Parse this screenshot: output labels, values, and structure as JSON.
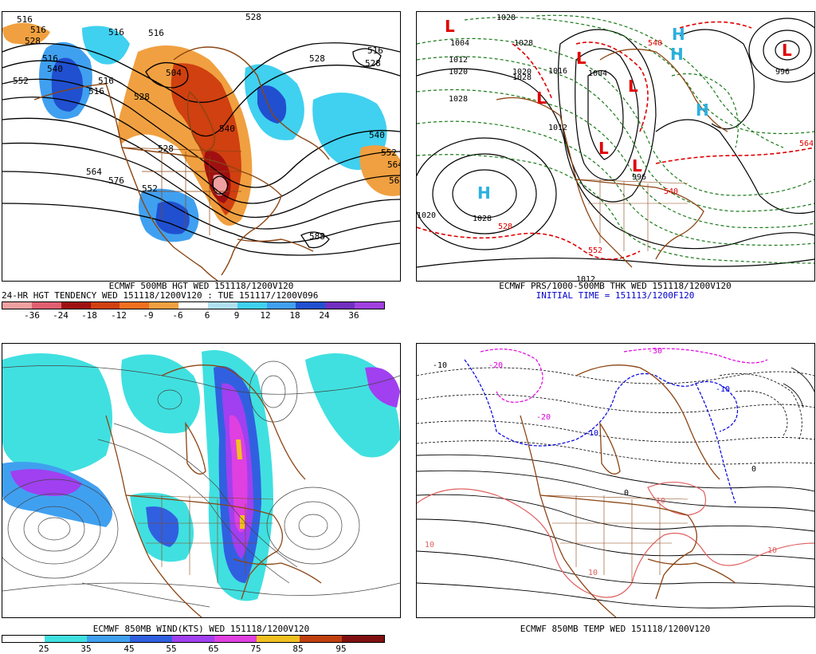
{
  "panels": {
    "p1": {
      "caption1": "ECMWF 500MB HGT WED 151118/1200V120",
      "caption2": "24-HR HGT TENDENCY WED 151118/1200V120 : TUE 151117/1200V096",
      "legend_labels": [
        "-36",
        "-24",
        "-18",
        "-12",
        "-9",
        "-6",
        "6",
        "9",
        "12",
        "18",
        "24",
        "36"
      ],
      "legend_colors": [
        "#f0a0a0",
        "#e06070",
        "#a01010",
        "#d04010",
        "#f07020",
        "#f0a040",
        "#ffffff",
        "#b0e0f0",
        "#40d0f0",
        "#40a0f0",
        "#2050d0",
        "#7030c0",
        "#a040e0"
      ],
      "contour_labels": [
        "516",
        "516",
        "528",
        "528",
        "540",
        "516",
        "516",
        "504",
        "516",
        "528",
        "540",
        "552",
        "564",
        "576",
        "528",
        "516",
        "528",
        "528",
        "552",
        "564",
        "516",
        "588",
        "552",
        "516",
        "540",
        "564"
      ]
    },
    "p2": {
      "caption1": "ECMWF PRS/1000-500MB THK WED 151118/1200V120",
      "caption2": "INITIAL TIME = 151113/1200F120",
      "labels": [
        "1028",
        "1004",
        "1012",
        "1020",
        "1028",
        "1028",
        "1016",
        "1012",
        "1020",
        "1028",
        "996",
        "1004",
        "1028",
        "996",
        "1012",
        "1020",
        "528",
        "552",
        "540",
        "564",
        "540"
      ],
      "pressure_centers": [
        "H",
        "H",
        "H",
        "H",
        "L",
        "L",
        "L",
        "L",
        "L",
        "L",
        "L"
      ]
    },
    "p3": {
      "caption1": "ECMWF 850MB WIND(KTS) WED 151118/1200V120",
      "legend_labels": [
        "25",
        "35",
        "45",
        "55",
        "65",
        "75",
        "85",
        "95"
      ],
      "legend_colors": [
        "#ffffff",
        "#40e0e0",
        "#40a0f0",
        "#3060e0",
        "#a040f0",
        "#e040e0",
        "#f0c020",
        "#c04010",
        "#801010"
      ]
    },
    "p4": {
      "caption1": "ECMWF 850MB TEMP WED 151118/1200V120",
      "labels": [
        "-10",
        "-20",
        "-10",
        "0",
        "10",
        "10",
        "-10",
        "10",
        "0",
        "-20",
        "-30",
        "10"
      ]
    }
  }
}
